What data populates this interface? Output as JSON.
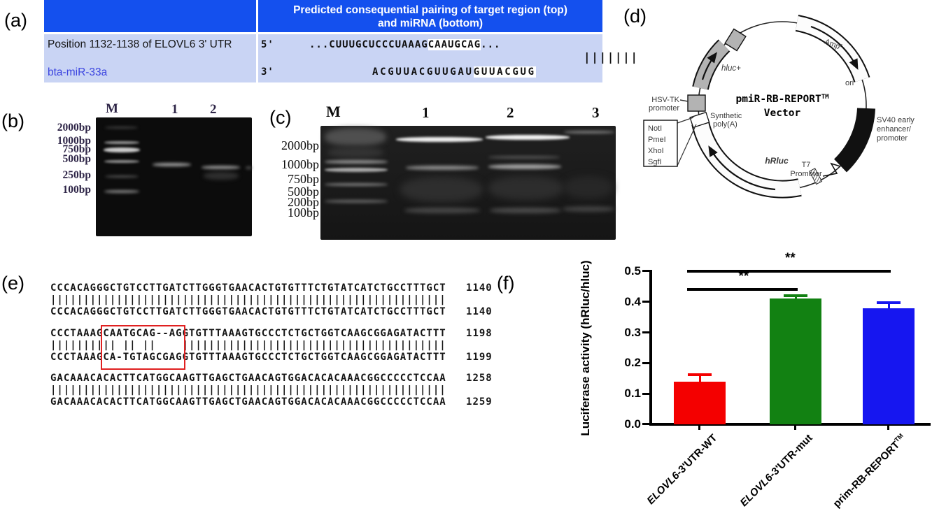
{
  "panel_labels": {
    "a": "(a)",
    "b": "(b)",
    "c": "(c)",
    "d": "(d)",
    "e": "(e)",
    "f": "(f)"
  },
  "panel_a": {
    "header": "Predicted consequential pairing of target region (top)\nand miRNA (bottom)",
    "row1_label": "Position 1132-1138 of ELOVL6 3' UTR",
    "row2_label": "bta-miR-33a",
    "five_prime": "5'",
    "three_prime": "3'",
    "target_pre": "...CUUUGCUCCCUAAAG",
    "target_hl": "CAAUGCAG",
    "target_post": "...",
    "mirna_pre": "ACGUUACGUUGAU",
    "mirna_hl": "GUUACGUG",
    "pairing_bars": "|||||||",
    "colors": {
      "header_bg": "#1450ee",
      "body_bg": "#c9d4f4",
      "mirna_text": "#3b44e0"
    }
  },
  "panel_b": {
    "lanes": [
      "M",
      "1",
      "2"
    ],
    "ladder": [
      "2000bp",
      "1000bp",
      "750bp",
      "500bp",
      "250bp",
      "100bp"
    ]
  },
  "panel_c": {
    "lanes": [
      "M",
      "1",
      "2",
      "3"
    ],
    "ladder": [
      "2000bp",
      "1000bp",
      "750bp",
      "500bp",
      "200bp",
      "100bp"
    ]
  },
  "panel_d": {
    "title": "pmiR-RB-REPORT",
    "title_sup": "TM",
    "subtitle": "Vector",
    "amp": "Amp",
    "amp_sup": "r",
    "ori": "ori",
    "sv40": [
      "SV40 early",
      "enhancer/",
      "promoter"
    ],
    "t7": [
      "T7",
      "Promoter"
    ],
    "hrluc": "hRluc",
    "polya": [
      "Synthetic",
      "poly(A)"
    ],
    "hsvtk": [
      "HSV-TK",
      "promoter"
    ],
    "hluc": "hluc+",
    "enzymes": [
      "NotI",
      "PmeI",
      "XhoI",
      "SgfI"
    ]
  },
  "panel_e": {
    "block1": "CCCACAGGGCTGTCCTTGATCTTGGGTGAACACTGTGTTTCTGTATCATCTGCCTTTGCT   1140\n||||||||||||||||||||||||||||||||||||||||||||||||||||||||||||\nCCCACAGGGCTGTCCTTGATCTTGGGTGAACACTGTGTTTCTGTATCATCTGCCTTTGCT   1140",
    "block2": "CCCTAAAGCAATGCAG--AGGTGTTTAAAGTGCCCTCTGCTGGTCAAGCGGAGATACTTT   1198\n|||||||||| || ||    ||||||||||||||||||||||||||||||||||||||||\nCCCTAAAGCA-TGTAGCGAGGTGTTTAAAGTGCCCTCTGCTGGTCAAGCGGAGATACTTT   1199",
    "block3": "GACAAACACACTTCATGGCAAGTTGAGCTGAACAGTGGACACACAAACGGCCCCCTCCAA   1258\n||||||||||||||||||||||||||||||||||||||||||||||||||||||||||||\nGACAAACACACTTCATGGCAAGTTGAGCTGAACAGTGGACACACAAACGGCCCCCTCCAA   1259"
  },
  "chart_data": {
    "type": "bar",
    "categories": [
      "ELOVL6-3'UTR-WT",
      "ELOVL6-3'UTR-mut",
      "prim-RB-REPORT™"
    ],
    "values": [
      0.14,
      0.41,
      0.38
    ],
    "errors": [
      0.026,
      0.014,
      0.021
    ],
    "bar_colors": [
      "#f40000",
      "#128112",
      "#1616f0"
    ],
    "title": "",
    "xlabel": "",
    "ylabel": "Luciferase activity (hRluc/hluc)",
    "ylim": [
      0,
      0.5
    ],
    "ytick_labels": [
      "0.0",
      "0.1",
      "0.2",
      "0.3",
      "0.4",
      "0.5"
    ],
    "grid": false,
    "legend": "none",
    "categories_rich": [
      {
        "italic": "ELOVL6",
        "rest": "-3'UTR-WT",
        "sup": ""
      },
      {
        "italic": "ELOVL6",
        "rest": "-3'UTR-mut",
        "sup": ""
      },
      {
        "italic": "",
        "rest": "prim-RB-REPORT",
        "sup": "TM"
      }
    ],
    "significance": [
      {
        "from": 0,
        "to": 1,
        "label": "**",
        "y": 0.44
      },
      {
        "from": 0,
        "to": 2,
        "label": "**",
        "y": 0.5
      }
    ]
  }
}
